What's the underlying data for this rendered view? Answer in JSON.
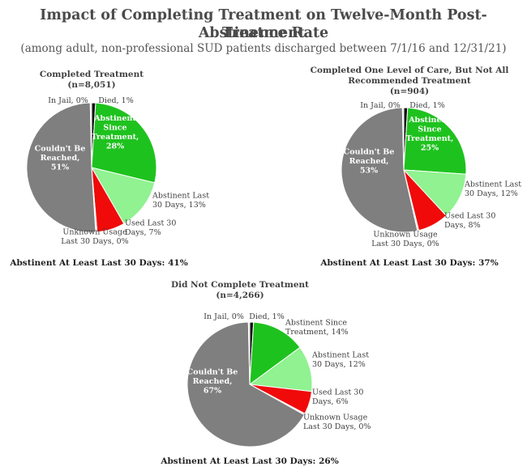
{
  "title_line1": "Impact of Completing Treatment on Twelve-Month Post-Treatment",
  "title_line2": "Abstinence Rate",
  "subtitle": "(among adult, non-professional SUD patients discharged between 7/1/16 and 12/31/21)",
  "colors": {
    "died": "#111111",
    "abstinent_since": "#1ec21e",
    "abstinent_last30": "#90f290",
    "used_last30": "#f00a0a",
    "unknown_usage": "#e6e6e6",
    "unreached": "#7f7f7f",
    "in_jail": "#dcdcdc"
  },
  "chart_data": [
    {
      "type": "pie",
      "title": [
        "Completed Treatment",
        "(n=8,051)"
      ],
      "footer": "Abstinent At Least Last 30 Days: 41%",
      "categories": [
        "Died",
        "Abstinent Since Treatment",
        "Abstinent Last 30 Days",
        "Used Last 30 Days",
        "Unknown Usage Last 30 Days",
        "Couldn't Be Reached",
        "In Jail"
      ],
      "values": [
        1,
        28,
        13,
        7,
        0,
        51,
        0
      ],
      "slice_labels": [
        [
          "Died, 1%"
        ],
        [
          "Abstinent",
          "Since",
          "Treatment,",
          "28%"
        ],
        [
          "Abstinent Last",
          "30 Days, 13%"
        ],
        [
          "Used Last 30",
          "Days, 7%"
        ],
        [
          "Unknown Usage",
          "Last 30 Days, 0%"
        ],
        [
          "Couldn't Be",
          "Reached,",
          "51%"
        ],
        [
          "In Jail, 0%"
        ]
      ]
    },
    {
      "type": "pie",
      "title": [
        "Completed One Level of Care, But Not All",
        "Recommended Treatment",
        "(n=904)"
      ],
      "footer": "Abstinent At Least Last 30 Days: 37%",
      "categories": [
        "Died",
        "Abstinent Since Treatment",
        "Abstinent Last 30 Days",
        "Used Last 30 Days",
        "Unknown Usage Last 30 Days",
        "Couldn't Be Reached",
        "In Jail"
      ],
      "values": [
        1,
        25,
        12,
        8,
        0,
        53,
        0
      ],
      "slice_labels": [
        [
          "Died, 1%"
        ],
        [
          "Abstinent",
          "Since",
          "Treatment,",
          "25%"
        ],
        [
          "Abstinent Last",
          "30 Days, 12%"
        ],
        [
          "Used Last 30",
          "Days, 8%"
        ],
        [
          "Unknown Usage",
          "Last 30 Days, 0%"
        ],
        [
          "Couldn't Be",
          "Reached,",
          "53%"
        ],
        [
          "In Jail, 0%"
        ]
      ]
    },
    {
      "type": "pie",
      "title": [
        "Did Not Complete Treatment",
        "(n=4,266)"
      ],
      "footer": "Abstinent At Least Last 30 Days: 26%",
      "categories": [
        "Died",
        "Abstinent Since Treatment",
        "Abstinent Last 30 Days",
        "Used Last 30 Days",
        "Unknown Usage Last 30 Days",
        "Couldn't Be Reached",
        "In Jail"
      ],
      "values": [
        1,
        14,
        12,
        6,
        0,
        67,
        0
      ],
      "slice_labels": [
        [
          "Died, 1%"
        ],
        [
          "Abstinent Since",
          "Treatment, 14%"
        ],
        [
          "Abstinent Last",
          "30 Days, 12%"
        ],
        [
          "Used Last 30",
          "Days, 6%"
        ],
        [
          "Unknown Usage",
          "Last 30 Days, 0%"
        ],
        [
          "Couldn't Be",
          "Reached,",
          "67%"
        ],
        [
          "In Jail, 0%"
        ]
      ]
    }
  ]
}
